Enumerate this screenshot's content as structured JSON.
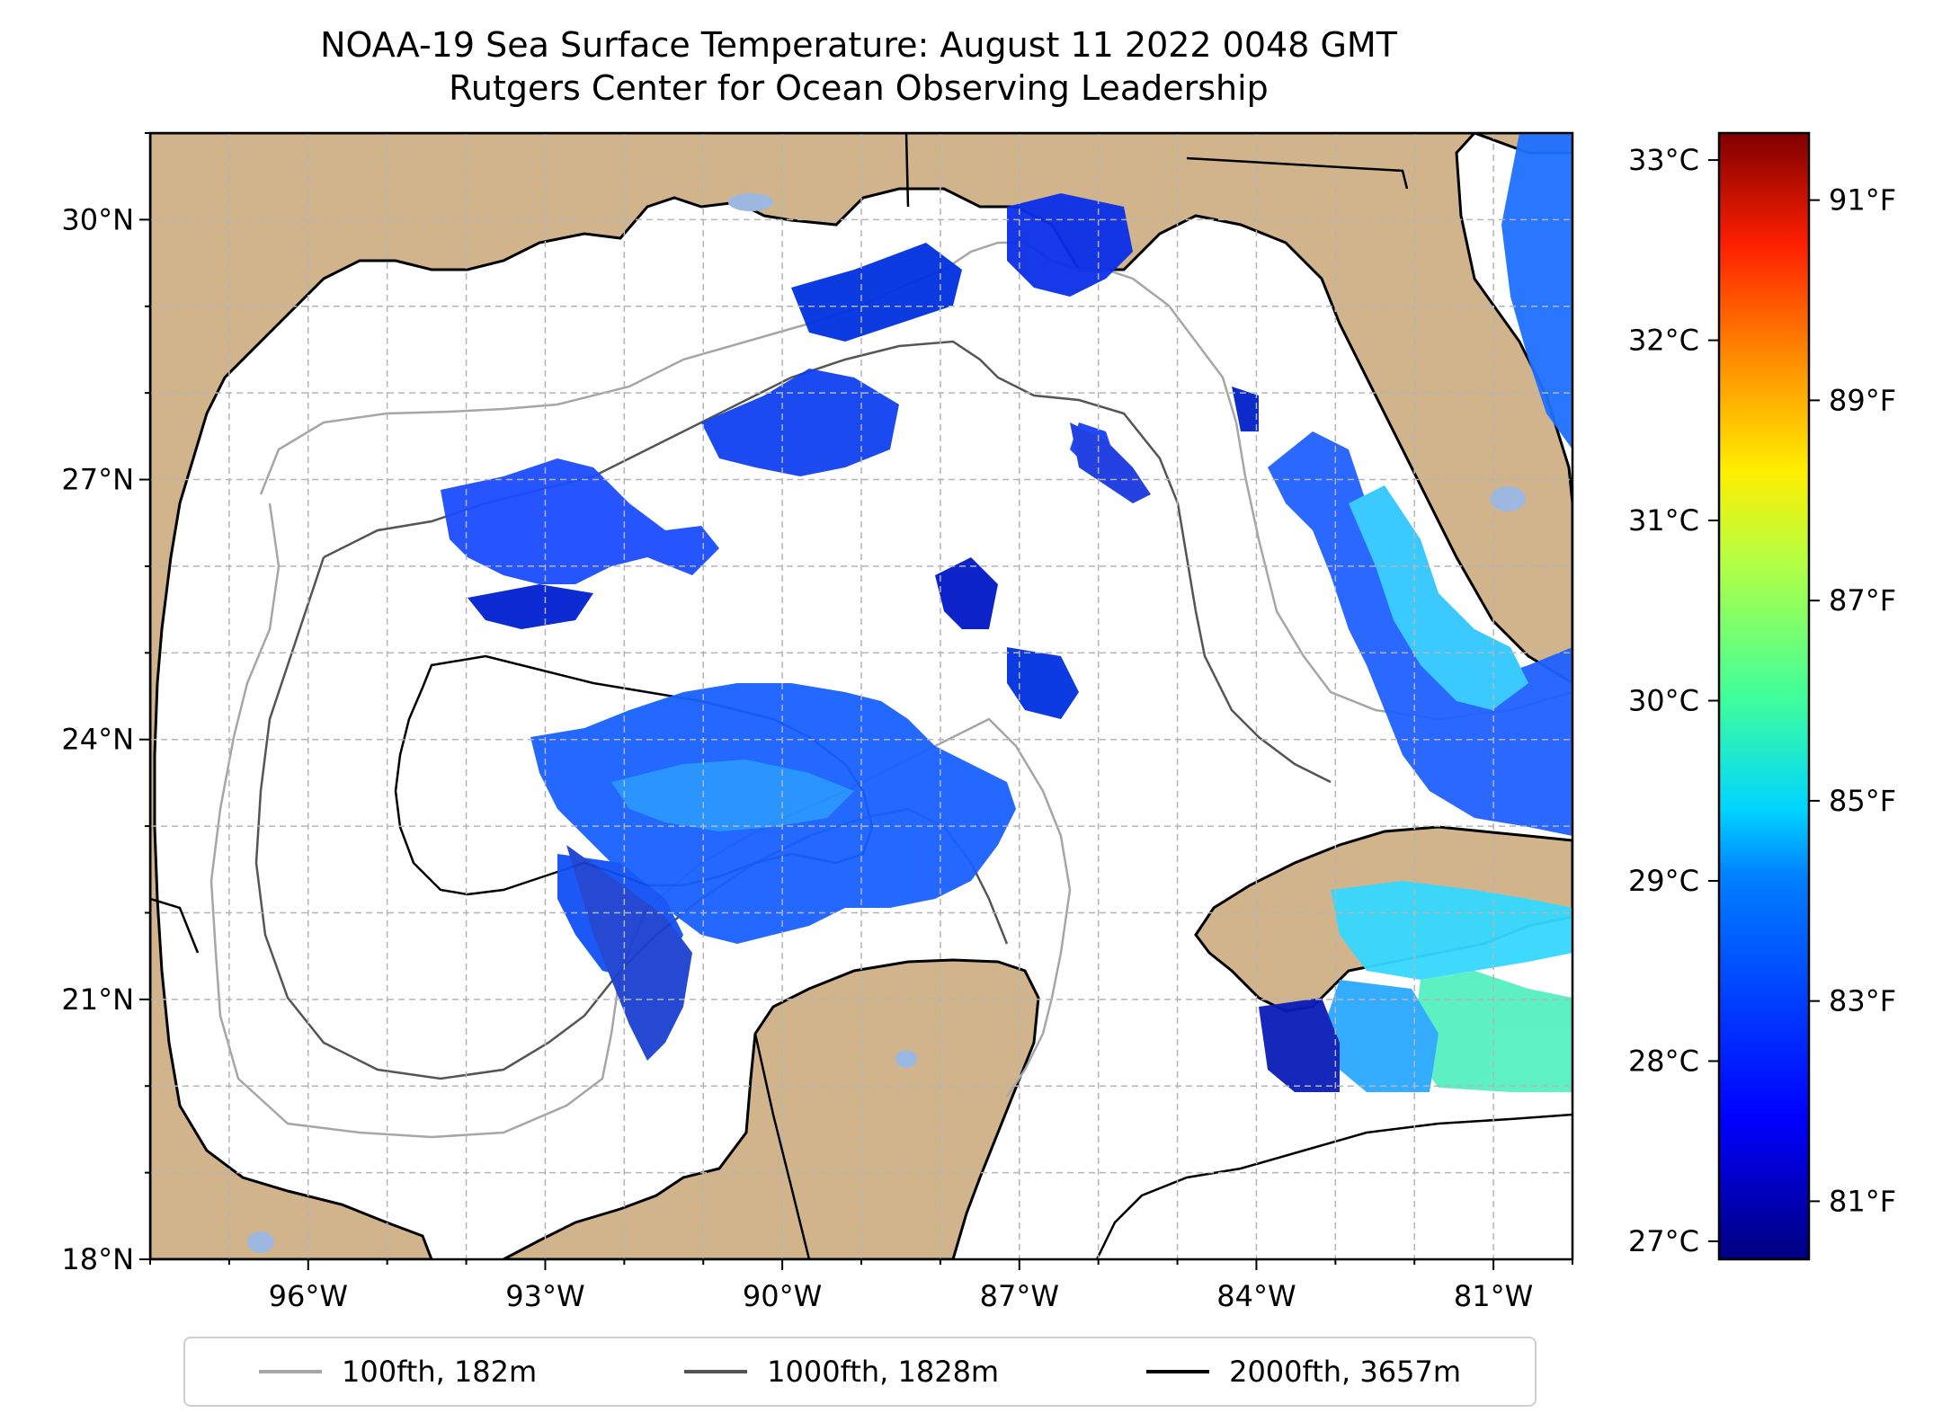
{
  "title": {
    "line1": "NOAA-19 Sea Surface Temperature: August 11 2022 0048 GMT",
    "line2": "Rutgers Center for Ocean Observing Leadership"
  },
  "map": {
    "lon_range": [
      -98,
      -80
    ],
    "lat_range": [
      18,
      31
    ],
    "lon_ticks": [
      {
        "value": -96,
        "label": "96°W"
      },
      {
        "value": -93,
        "label": "93°W"
      },
      {
        "value": -90,
        "label": "90°W"
      },
      {
        "value": -87,
        "label": "87°W"
      },
      {
        "value": -84,
        "label": "84°W"
      },
      {
        "value": -81,
        "label": "81°W"
      }
    ],
    "lat_ticks": [
      {
        "value": 18,
        "label": "18°N"
      },
      {
        "value": 21,
        "label": "21°N"
      },
      {
        "value": 24,
        "label": "24°N"
      },
      {
        "value": 27,
        "label": "27°N"
      },
      {
        "value": 30,
        "label": "30°N"
      }
    ],
    "land_color": "#d2b48c",
    "water_color": "#ffffff",
    "inland_water_color": "#9cb8e0",
    "grid": "dashed"
  },
  "colorbar": {
    "colormap": "jet",
    "celsius_ticks": [
      {
        "value": 27,
        "label": "27°C"
      },
      {
        "value": 28,
        "label": "28°C"
      },
      {
        "value": 29,
        "label": "29°C"
      },
      {
        "value": 30,
        "label": "30°C"
      },
      {
        "value": 31,
        "label": "31°C"
      },
      {
        "value": 32,
        "label": "32°C"
      },
      {
        "value": 33,
        "label": "33°C"
      }
    ],
    "fahrenheit_ticks": [
      {
        "value": 81,
        "label": "81°F"
      },
      {
        "value": 83,
        "label": "83°F"
      },
      {
        "value": 85,
        "label": "85°F"
      },
      {
        "value": 87,
        "label": "87°F"
      },
      {
        "value": 89,
        "label": "89°F"
      },
      {
        "value": 91,
        "label": "91°F"
      }
    ],
    "range_c": [
      26.9,
      33.15
    ]
  },
  "legend": {
    "items": [
      {
        "label": "100fth, 182m",
        "color": "#a6a6a6"
      },
      {
        "label": "1000fth, 1828m",
        "color": "#555555"
      },
      {
        "label": "2000fth, 3657m",
        "color": "#000000"
      }
    ]
  }
}
